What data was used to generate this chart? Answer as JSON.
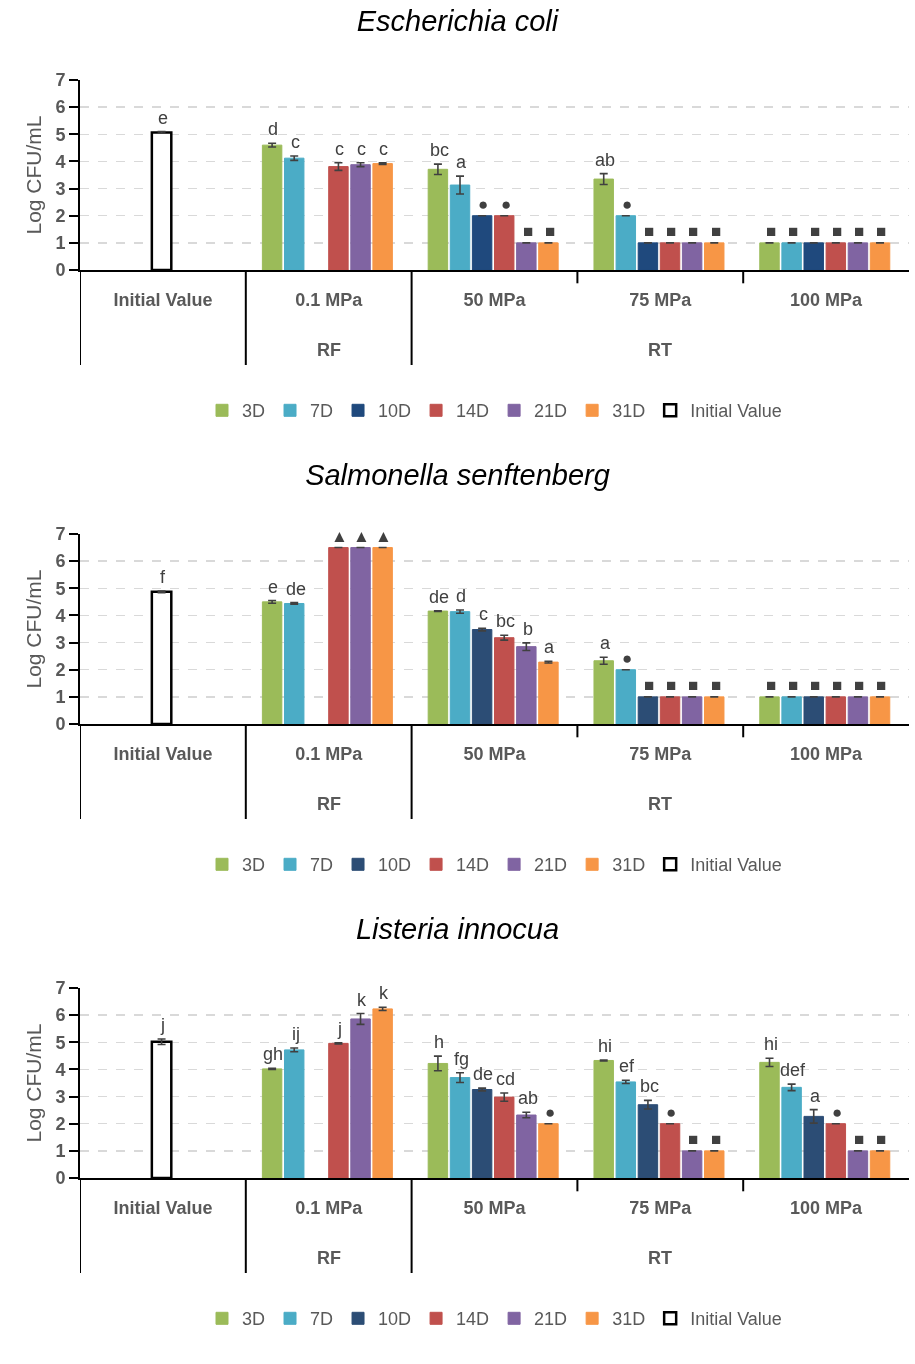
{
  "chart_data": [
    {
      "type": "bar",
      "title": "Escherichia coli",
      "ylabel": "Log CFU/mL",
      "categories": [
        "Initial Value",
        "0.1 MPa",
        "50 MPa",
        "75 MPa",
        "100 MPa"
      ],
      "ylim": [
        0,
        7
      ],
      "yticks": [
        0,
        1,
        2,
        3,
        4,
        5,
        6,
        7
      ],
      "grid": "y",
      "legend": "bottom",
      "annotations": [
        "RF",
        "RT"
      ],
      "series": [
        {
          "name": "3D",
          "color": "#9bbb59",
          "values": [
            null,
            4.6,
            3.71,
            3.35,
            1.0
          ],
          "errors": [
            null,
            0.07,
            0.19,
            0.2,
            null
          ],
          "value_labels": [
            null,
            "d",
            "bc",
            "ab",
            "■"
          ]
        },
        {
          "name": "7D",
          "color": "#4bacc6",
          "values": [
            null,
            4.12,
            3.13,
            2.0,
            1.0
          ],
          "errors": [
            null,
            0.08,
            0.33,
            null,
            null
          ],
          "value_labels": [
            null,
            "c",
            "a",
            "●",
            "■"
          ]
        },
        {
          "name": "10D",
          "color": "#1f497d",
          "values": [
            null,
            null,
            2.0,
            1.0,
            1.0
          ],
          "errors": [
            null,
            null,
            null,
            null,
            null
          ],
          "value_labels": [
            null,
            null,
            "●",
            "■",
            "■"
          ]
        },
        {
          "name": "14D",
          "color": "#c0504d",
          "values": [
            null,
            3.81,
            2.0,
            1.0,
            1.0
          ],
          "errors": [
            null,
            0.14,
            null,
            null,
            null
          ],
          "value_labels": [
            null,
            "c",
            "●",
            "■",
            "■"
          ]
        },
        {
          "name": "21D",
          "color": "#8064a2",
          "values": [
            null,
            3.88,
            1.0,
            1.0,
            1.0
          ],
          "errors": [
            null,
            0.07,
            null,
            null,
            null
          ],
          "value_labels": [
            null,
            "c",
            "■",
            "■",
            "■"
          ]
        },
        {
          "name": "31D",
          "color": "#f79646",
          "values": [
            null,
            3.92,
            1.0,
            1.0,
            1.0
          ],
          "errors": [
            null,
            0.03,
            null,
            null,
            null
          ],
          "value_labels": [
            null,
            "c",
            "■",
            "■",
            "■"
          ]
        },
        {
          "name": "Initial Value",
          "color": "#ffffff",
          "values": [
            5.07,
            null,
            null,
            null,
            null
          ],
          "errors": [
            0.03,
            null,
            null,
            null,
            null
          ],
          "value_labels": [
            "e",
            null,
            null,
            null,
            null
          ]
        }
      ]
    },
    {
      "type": "bar",
      "title": "Salmonella senftenberg",
      "ylabel": "Log CFU/mL",
      "categories": [
        "Initial Value",
        "0.1 MPa",
        "50 MPa",
        "75 MPa",
        "100 MPa"
      ],
      "ylim": [
        0,
        7
      ],
      "yticks": [
        0,
        1,
        2,
        3,
        4,
        5,
        6,
        7
      ],
      "grid": "y",
      "legend": "bottom",
      "annotations": [
        "RF",
        "RT"
      ],
      "series": [
        {
          "name": "3D",
          "color": "#9bbb59",
          "values": [
            null,
            4.5,
            4.16,
            2.33,
            1.0
          ],
          "errors": [
            null,
            0.05,
            0.01,
            0.13,
            null
          ],
          "value_labels": [
            null,
            "e",
            "de",
            "a",
            "■"
          ]
        },
        {
          "name": "7D",
          "color": "#4bacc6",
          "values": [
            null,
            4.44,
            4.14,
            2.0,
            1.0
          ],
          "errors": [
            null,
            0.03,
            0.06,
            null,
            null
          ],
          "value_labels": [
            null,
            "de",
            "d",
            "●",
            "■"
          ]
        },
        {
          "name": "10D",
          "color": "#2c4d75",
          "values": [
            null,
            null,
            3.48,
            1.0,
            1.0
          ],
          "errors": [
            null,
            null,
            0.05,
            null,
            null
          ],
          "value_labels": [
            null,
            null,
            "c",
            "■",
            "■"
          ]
        },
        {
          "name": "14D",
          "color": "#c0504d",
          "values": [
            null,
            6.5,
            3.18,
            1.0,
            1.0
          ],
          "errors": [
            null,
            null,
            0.09,
            null,
            null
          ],
          "value_labels": [
            null,
            "▲",
            "bc",
            "■",
            "■"
          ]
        },
        {
          "name": "21D",
          "color": "#8064a2",
          "values": [
            null,
            6.5,
            2.85,
            1.0,
            1.0
          ],
          "errors": [
            null,
            null,
            0.14,
            null,
            null
          ],
          "value_labels": [
            null,
            "▲",
            "b",
            "■",
            "■"
          ]
        },
        {
          "name": "31D",
          "color": "#f79646",
          "values": [
            null,
            6.5,
            2.28,
            1.0,
            1.0
          ],
          "errors": [
            null,
            null,
            0.03,
            null,
            null
          ],
          "value_labels": [
            null,
            "▲",
            "a",
            "■",
            "■"
          ]
        },
        {
          "name": "Initial Value",
          "color": "#ffffff",
          "values": [
            4.87,
            null,
            null,
            null,
            null
          ],
          "errors": [
            0.03,
            null,
            null,
            null,
            null
          ],
          "value_labels": [
            "f",
            null,
            null,
            null,
            null
          ]
        }
      ]
    },
    {
      "type": "bar",
      "title": "Listeria innocua",
      "ylabel": "Log CFU/mL",
      "categories": [
        "Initial Value",
        "0.1 MPa",
        "50 MPa",
        "75 MPa",
        "100 MPa"
      ],
      "ylim": [
        0,
        7
      ],
      "yticks": [
        0,
        1,
        2,
        3,
        4,
        5,
        6,
        7
      ],
      "grid": "y",
      "legend": "bottom",
      "annotations": [
        "RF",
        "RT"
      ],
      "series": [
        {
          "name": "3D",
          "color": "#9bbb59",
          "values": [
            null,
            4.02,
            4.22,
            4.33,
            4.26
          ],
          "errors": [
            null,
            0.02,
            0.27,
            0.02,
            0.15
          ],
          "value_labels": [
            null,
            "gh",
            "h",
            "hi",
            "hi"
          ]
        },
        {
          "name": "7D",
          "color": "#4bacc6",
          "values": [
            null,
            4.72,
            3.7,
            3.54,
            3.34
          ],
          "errors": [
            null,
            0.07,
            0.18,
            0.06,
            0.12
          ],
          "value_labels": [
            null,
            "ij",
            "fg",
            "ef",
            "def"
          ]
        },
        {
          "name": "10D",
          "color": "#2c4d75",
          "values": [
            null,
            null,
            3.26,
            2.7,
            2.27
          ],
          "errors": [
            null,
            null,
            0.05,
            0.16,
            0.25
          ],
          "value_labels": [
            null,
            null,
            "de",
            "bc",
            "a"
          ]
        },
        {
          "name": "14D",
          "color": "#c0504d",
          "values": [
            null,
            4.96,
            2.98,
            2.0,
            2.0
          ],
          "errors": [
            null,
            0.02,
            0.15,
            null,
            null
          ],
          "value_labels": [
            null,
            "j",
            "cd",
            "●",
            "●"
          ]
        },
        {
          "name": "21D",
          "color": "#8064a2",
          "values": [
            null,
            5.86,
            2.32,
            1.0,
            1.0
          ],
          "errors": [
            null,
            0.2,
            0.1,
            null,
            null
          ],
          "value_labels": [
            null,
            "k",
            "ab",
            "■",
            "■"
          ]
        },
        {
          "name": "31D",
          "color": "#f79646",
          "values": [
            null,
            6.23,
            2.0,
            1.0,
            1.0
          ],
          "errors": [
            null,
            0.06,
            null,
            null,
            null
          ],
          "value_labels": [
            null,
            "k",
            "●",
            "■",
            "■"
          ]
        },
        {
          "name": "Initial Value",
          "color": "#ffffff",
          "values": [
            5.02,
            null,
            null,
            null,
            null
          ],
          "errors": [
            0.1,
            null,
            null,
            null,
            null
          ],
          "value_labels": [
            "j",
            null,
            null,
            null,
            null
          ]
        }
      ]
    }
  ]
}
